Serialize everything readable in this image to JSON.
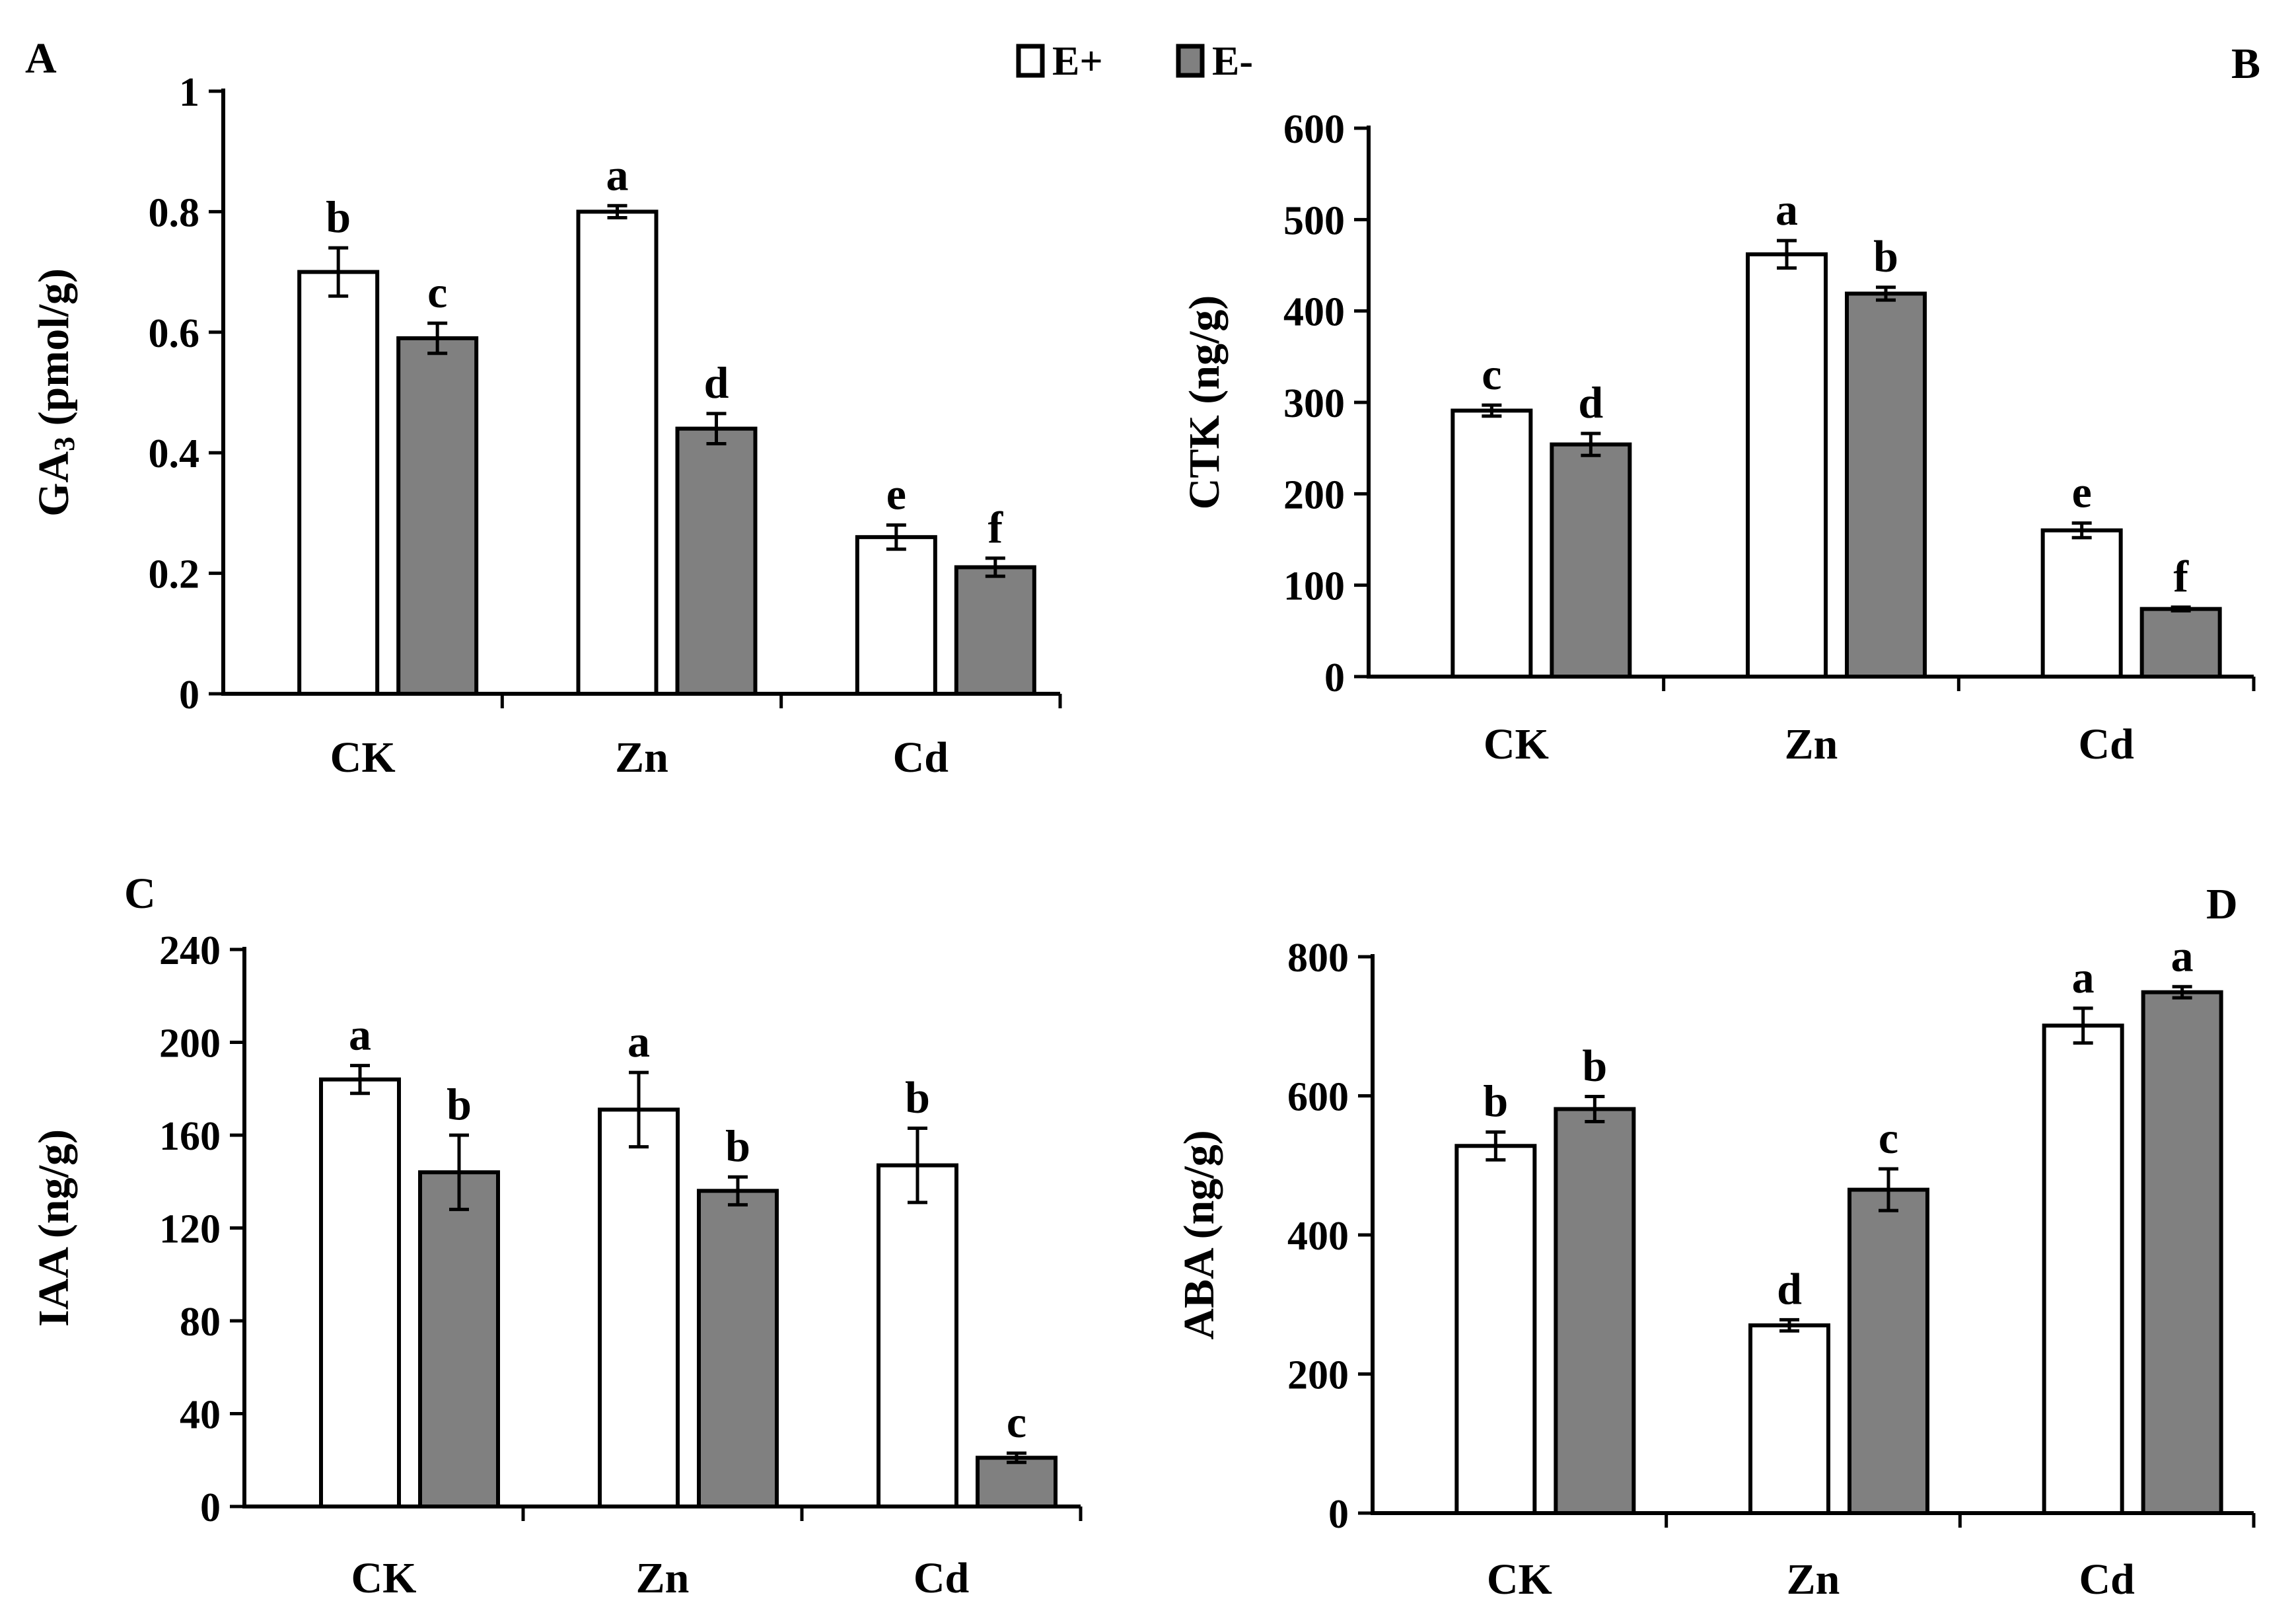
{
  "legend": {
    "position": "top-center",
    "entries": [
      {
        "label": "E+",
        "color": "#ffffff"
      },
      {
        "label": "E-",
        "color": "#808080"
      }
    ]
  },
  "colors": {
    "eplus": "#ffffff",
    "eminus": "#808080",
    "stroke": "#000000"
  },
  "chart_data": [
    {
      "panel": "A",
      "type": "bar",
      "ylabel_main": "GA",
      "ylabel_sub": "3",
      "ylabel_unit": " (pmol/g)",
      "categories": [
        "CK",
        "Zn",
        "Cd"
      ],
      "ylim": [
        0,
        1
      ],
      "yticks": [
        0,
        0.2,
        0.4,
        0.6,
        0.8,
        1
      ],
      "ytick_labels": [
        "0",
        "0.2",
        "0.4",
        "0.6",
        "0.8",
        "1"
      ],
      "series": [
        {
          "name": "E+",
          "values": [
            0.7,
            0.8,
            0.26
          ],
          "errors": [
            0.04,
            0.01,
            0.02
          ],
          "letters": [
            "b",
            "a",
            "e"
          ]
        },
        {
          "name": "E-",
          "values": [
            0.59,
            0.44,
            0.21
          ],
          "errors": [
            0.025,
            0.025,
            0.015
          ],
          "letters": [
            "c",
            "d",
            "f"
          ]
        }
      ]
    },
    {
      "panel": "B",
      "type": "bar",
      "ylabel_main": "CTK (ng/g)",
      "ylabel_sub": "",
      "ylabel_unit": "",
      "categories": [
        "CK",
        "Zn",
        "Cd"
      ],
      "ylim": [
        0,
        600
      ],
      "yticks": [
        0,
        100,
        200,
        300,
        400,
        500,
        600
      ],
      "ytick_labels": [
        "0",
        "100",
        "200",
        "300",
        "400",
        "500",
        "600"
      ],
      "series": [
        {
          "name": "E+",
          "values": [
            291,
            462,
            160
          ],
          "errors": [
            6,
            15,
            8
          ],
          "letters": [
            "c",
            "a",
            "e"
          ]
        },
        {
          "name": "E-",
          "values": [
            254,
            419,
            74
          ],
          "errors": [
            12,
            7,
            2
          ],
          "letters": [
            "d",
            "b",
            "f"
          ]
        }
      ]
    },
    {
      "panel": "C",
      "type": "bar",
      "ylabel_main": "IAA (ng/g)",
      "ylabel_sub": "",
      "ylabel_unit": "",
      "categories": [
        "CK",
        "Zn",
        "Cd"
      ],
      "ylim": [
        0,
        240
      ],
      "yticks": [
        0,
        40,
        80,
        120,
        160,
        200,
        240
      ],
      "ytick_labels": [
        "0",
        "40",
        "80",
        "120",
        "160",
        "200",
        "240"
      ],
      "series": [
        {
          "name": "E+",
          "values": [
            184,
            171,
            147
          ],
          "errors": [
            6,
            16,
            16
          ],
          "letters": [
            "a",
            "a",
            "b"
          ]
        },
        {
          "name": "E-",
          "values": [
            144,
            136,
            21
          ],
          "errors": [
            16,
            6,
            2
          ],
          "letters": [
            "b",
            "b",
            "c"
          ]
        }
      ]
    },
    {
      "panel": "D",
      "type": "bar",
      "ylabel_main": "ABA (ng/g)",
      "ylabel_sub": "",
      "ylabel_unit": "",
      "categories": [
        "CK",
        "Zn",
        "Cd"
      ],
      "ylim": [
        0,
        800
      ],
      "yticks": [
        0,
        200,
        400,
        600,
        800
      ],
      "ytick_labels": [
        "0",
        "200",
        "400",
        "600",
        "800"
      ],
      "series": [
        {
          "name": "E+",
          "values": [
            528,
            270,
            701
          ],
          "errors": [
            20,
            8,
            25
          ],
          "letters": [
            "b",
            "d",
            "a"
          ]
        },
        {
          "name": "E-",
          "values": [
            581,
            465,
            749
          ],
          "errors": [
            18,
            30,
            8
          ],
          "letters": [
            "b",
            "c",
            "a"
          ]
        }
      ]
    }
  ]
}
